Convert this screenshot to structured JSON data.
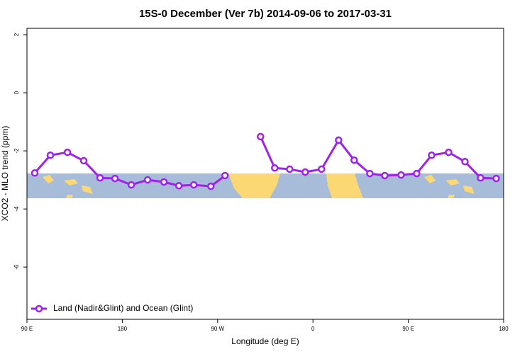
{
  "chart_data": {
    "type": "line",
    "title": "15S-0 December (Ver 7b)   2014-09-06 to 2017-03-31",
    "x_label": "Longitude (deg E)",
    "y_label": "XCO2 - MLO trend (ppm)",
    "xlim": [
      90,
      540
    ],
    "ylim": [
      -7.8,
      2.22
    ],
    "xticks": [
      {
        "value": 90,
        "label": "90 E"
      },
      180,
      {
        "value": 270,
        "label": "90 W"
      },
      {
        "value": 360,
        "label": "0"
      },
      {
        "value": 450,
        "label": "90 E"
      },
      {
        "value": 540,
        "label": "180"
      }
    ],
    "yticks": [
      2,
      0,
      -2,
      -4,
      -6
    ],
    "legend": "bottom-left",
    "x": [
      97.4,
      112.1,
      128.2,
      143.6,
      159.0,
      173.1,
      188.5,
      203.9,
      219.3,
      233.4,
      247.5,
      263.6,
      277.0,
      null,
      310.5,
      323.9,
      338.0,
      352.7,
      368.1,
      384.2,
      398.9,
      413.7,
      427.8,
      443.2,
      457.9,
      472.0,
      488.1,
      503.5,
      518.2,
      533.0
    ],
    "series": [
      {
        "name": "Land (Nadir&Glint) and Ocean (Glint)",
        "color": "#a020f0",
        "values": [
          -2.76,
          -2.15,
          -2.05,
          -2.34,
          -2.93,
          -2.95,
          -3.17,
          -3.0,
          -3.07,
          -3.2,
          -3.17,
          -3.22,
          -2.85,
          null,
          -1.51,
          -2.59,
          -2.63,
          -2.73,
          -2.63,
          -1.63,
          -2.32,
          -2.78,
          -2.85,
          -2.83,
          -2.78,
          -2.15,
          -2.05,
          -2.37,
          -2.93,
          -2.95
        ]
      }
    ]
  }
}
